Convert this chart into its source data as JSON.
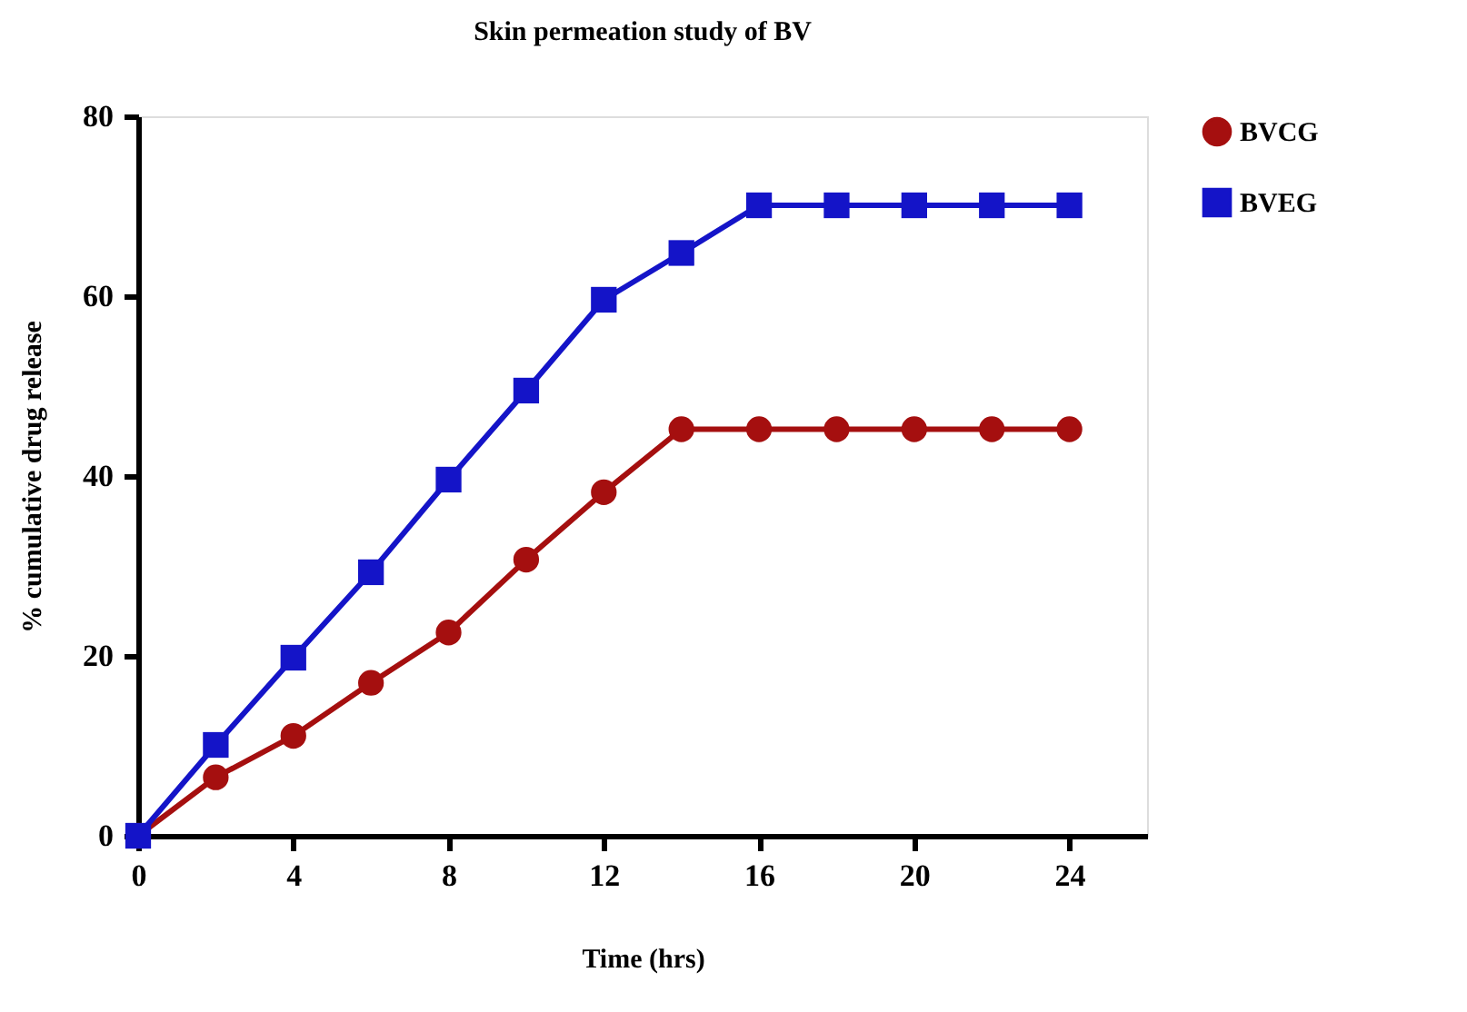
{
  "chart_data": {
    "type": "line",
    "title": "Skin permeation study of BV",
    "xlabel": "Time (hrs)",
    "ylabel": "% cumulative drug release",
    "x": [
      0,
      2,
      4,
      6,
      8,
      10,
      12,
      14,
      16,
      18,
      20,
      22,
      24
    ],
    "series": [
      {
        "name": "BVCG",
        "color": "#a50f0f",
        "marker": "circle",
        "values": [
          0,
          6.5,
          11.1,
          17,
          22.6,
          30.7,
          38.2,
          45.2,
          45.2,
          45.2,
          45.2,
          45.2,
          45.2
        ]
      },
      {
        "name": "BVEG",
        "color": "#1414c8",
        "marker": "square",
        "values": [
          0,
          10.1,
          19.8,
          29.3,
          39.6,
          49.5,
          59.6,
          64.8,
          70.1,
          70.1,
          70.1,
          70.1,
          70.1
        ]
      }
    ],
    "xlim": [
      0,
      26
    ],
    "xticks": [
      0,
      4,
      8,
      12,
      16,
      20,
      24
    ],
    "ylim": [
      0,
      80
    ],
    "yticks": [
      0,
      20,
      40,
      60,
      80
    ],
    "grid": false,
    "legend": "top right",
    "line_style": "solid"
  }
}
